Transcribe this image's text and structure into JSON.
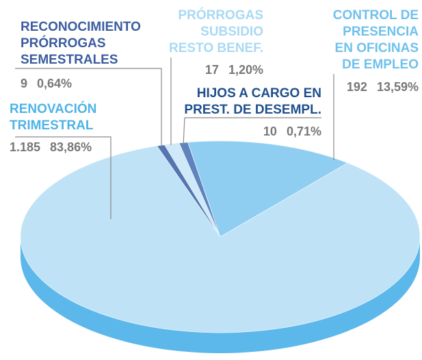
{
  "chart_data": {
    "type": "pie3d",
    "categories": [
      [
        "RENOVACIÓN",
        "TRIMESTRAL"
      ],
      [
        "CONTROL DE",
        "PRESENCIA",
        "EN OFICINAS",
        "DE EMPLEO"
      ],
      [
        "PRÓRROGAS",
        "SUBSIDIO",
        "RESTO BENEF."
      ],
      [
        "HIJOS A CARGO EN",
        "PREST. DE DESEMPL."
      ],
      [
        "RECONOCIMIENTO",
        "PRÓRROGAS",
        "SEMESTRALES"
      ]
    ],
    "values": [
      83.86,
      13.59,
      1.2,
      0.71,
      0.64
    ],
    "value_labels": [
      "83,86%",
      "13,59%",
      "1,20%",
      "0,71%",
      "0,64%"
    ],
    "counts": [
      1185,
      192,
      17,
      10,
      9
    ],
    "count_labels": [
      "1.185",
      "192",
      "17",
      "10",
      "9"
    ],
    "colors": [
      "#bfe2f7",
      "#8fcdf1",
      "#cfe9f8",
      "#5f83bd",
      "#5675b0"
    ],
    "label_colors": [
      "#4db3e6",
      "#6fc1ec",
      "#a9d9f3",
      "#1e4f8d",
      "#3b5c9f"
    ]
  }
}
